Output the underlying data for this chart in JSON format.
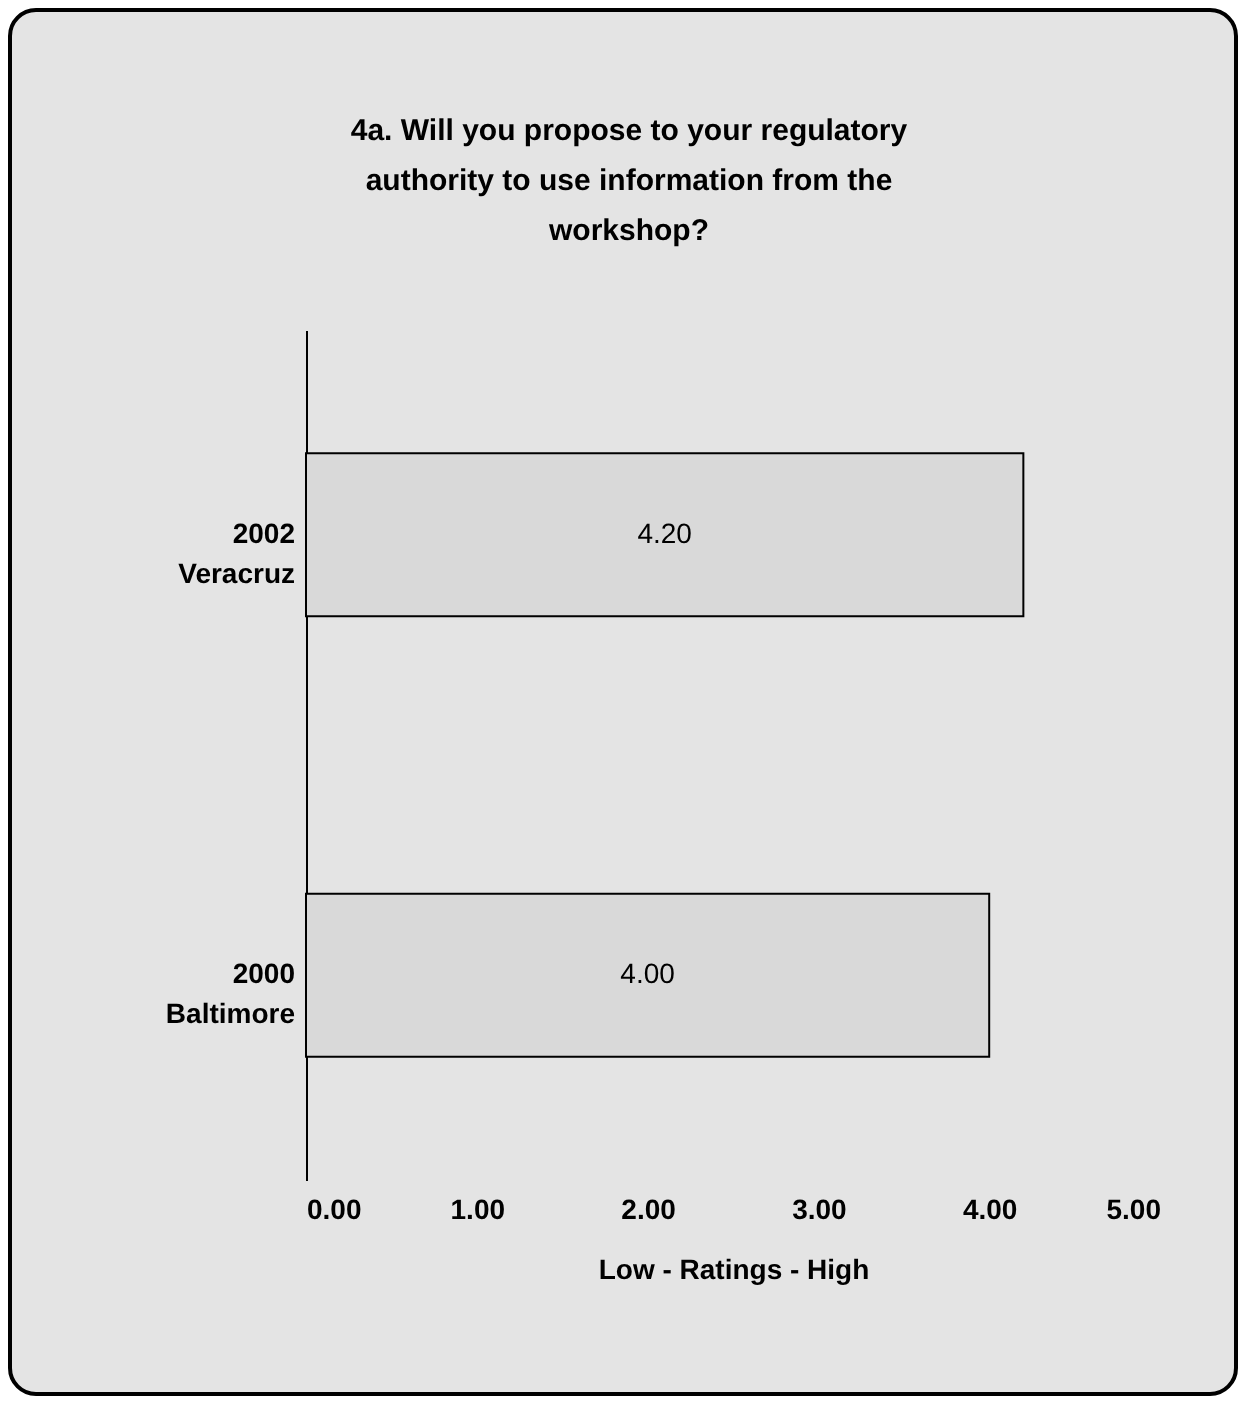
{
  "chart_data": {
    "type": "bar",
    "orientation": "horizontal",
    "title": "4a. Will you propose to your regulatory authority to use information from the workshop?",
    "xlabel": "Low    -    Ratings    -    High",
    "categories": [
      "2002 Veracruz",
      "2000 Baltimore"
    ],
    "values": [
      4.2,
      4.0
    ],
    "value_labels": [
      "4.20",
      "4.00"
    ],
    "color": "#d9d9d9",
    "xlim": [
      0,
      5
    ],
    "xticks": [
      {
        "value": 0,
        "label": "0.00"
      },
      {
        "value": 1,
        "label": "1.00"
      },
      {
        "value": 2,
        "label": "2.00"
      },
      {
        "value": 3,
        "label": "3.00"
      },
      {
        "value": 4,
        "label": "4.00"
      },
      {
        "value": 5,
        "label": "5.00"
      }
    ],
    "grid": false
  }
}
